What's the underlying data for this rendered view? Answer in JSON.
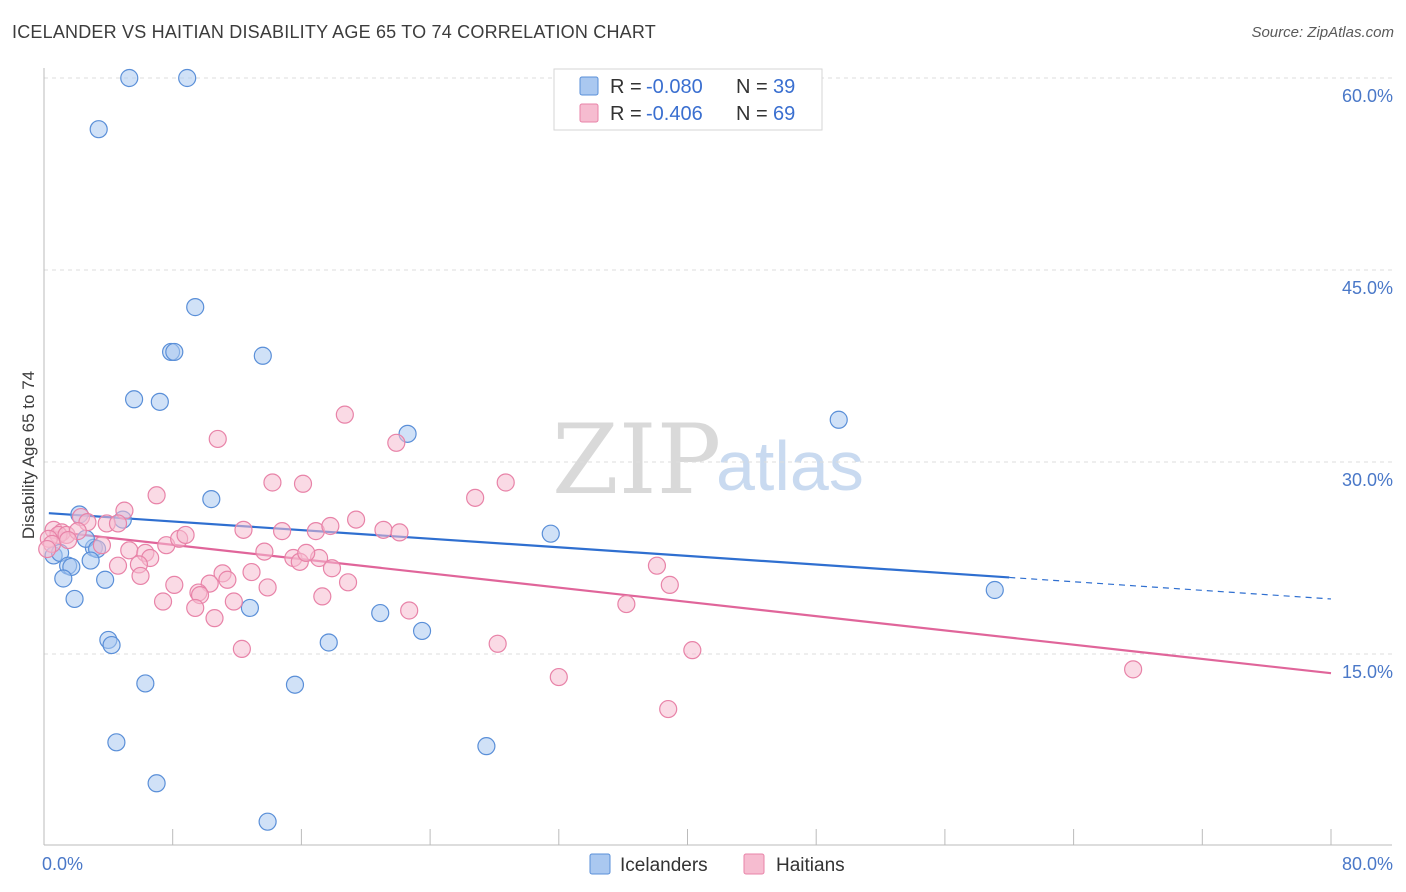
{
  "title": "ICELANDER VS HAITIAN DISABILITY AGE 65 TO 74 CORRELATION CHART",
  "source": "Source: ZipAtlas.com",
  "watermark": {
    "zip": "ZIP",
    "atlas": "atlas"
  },
  "legend": {
    "rows": [
      {
        "r_label": "R =",
        "r_value": "-0.080",
        "n_label": "N =",
        "n_value": "39"
      },
      {
        "r_label": "R =",
        "r_value": "-0.406",
        "n_label": "N =",
        "n_value": "69"
      }
    ]
  },
  "colors": {
    "blue_fill": "#aac8f0",
    "blue_stroke": "#5a8fd8",
    "blue_line": "#2f6fd0",
    "pink_fill": "#f6bcd0",
    "pink_stroke": "#e883a8",
    "pink_line": "#e0659a",
    "grid": "#dddddd"
  },
  "chart_data": {
    "type": "scatter",
    "xlabel": "",
    "ylabel": "Disability Age 65 to 74",
    "xlim": [
      0,
      80
    ],
    "ylim": [
      0,
      63
    ],
    "y_ticks": [
      {
        "value": 15,
        "label": "15.0%"
      },
      {
        "value": 30,
        "label": "30.0%"
      },
      {
        "value": 45,
        "label": "45.0%"
      },
      {
        "value": 60,
        "label": "60.0%"
      }
    ],
    "x_tick_labels": [
      {
        "value": 0,
        "label": "0.0%"
      },
      {
        "value": 80,
        "label": "80.0%"
      }
    ],
    "x_minor_ticks": [
      0,
      8,
      16,
      24,
      32,
      40,
      48,
      56,
      64,
      72,
      80
    ],
    "series": [
      {
        "name": "Icelanders",
        "color": "blue",
        "points": [
          [
            5.3,
            60.0
          ],
          [
            8.9,
            60.0
          ],
          [
            3.4,
            56.0
          ],
          [
            9.4,
            42.1
          ],
          [
            7.9,
            38.6
          ],
          [
            8.1,
            38.6
          ],
          [
            13.6,
            38.3
          ],
          [
            5.6,
            34.9
          ],
          [
            7.2,
            34.7
          ],
          [
            22.6,
            32.2
          ],
          [
            49.4,
            33.3
          ],
          [
            10.4,
            27.1
          ],
          [
            2.2,
            25.9
          ],
          [
            4.9,
            25.5
          ],
          [
            31.5,
            24.4
          ],
          [
            0.6,
            22.7
          ],
          [
            1.0,
            22.9
          ],
          [
            3.1,
            23.3
          ],
          [
            2.6,
            24.0
          ],
          [
            3.3,
            23.2
          ],
          [
            1.5,
            21.9
          ],
          [
            2.9,
            22.3
          ],
          [
            1.7,
            21.8
          ],
          [
            1.2,
            20.9
          ],
          [
            3.8,
            20.8
          ],
          [
            1.9,
            19.3
          ],
          [
            12.8,
            18.6
          ],
          [
            20.9,
            18.2
          ],
          [
            59.1,
            20.0
          ],
          [
            23.5,
            16.8
          ],
          [
            4.0,
            16.1
          ],
          [
            4.2,
            15.7
          ],
          [
            17.7,
            15.9
          ],
          [
            6.3,
            12.7
          ],
          [
            15.6,
            12.6
          ],
          [
            4.5,
            8.1
          ],
          [
            27.5,
            7.8
          ],
          [
            7.0,
            4.9
          ],
          [
            13.9,
            1.9
          ]
        ]
      },
      {
        "name": "Haitians",
        "color": "pink",
        "points": [
          [
            18.7,
            33.7
          ],
          [
            10.8,
            31.8
          ],
          [
            21.9,
            31.5
          ],
          [
            14.2,
            28.4
          ],
          [
            16.1,
            28.3
          ],
          [
            28.7,
            28.4
          ],
          [
            7.0,
            27.4
          ],
          [
            26.8,
            27.2
          ],
          [
            5.0,
            26.2
          ],
          [
            2.3,
            25.7
          ],
          [
            19.4,
            25.5
          ],
          [
            2.7,
            25.3
          ],
          [
            3.9,
            25.2
          ],
          [
            4.6,
            25.2
          ],
          [
            12.4,
            24.7
          ],
          [
            14.8,
            24.6
          ],
          [
            16.9,
            24.6
          ],
          [
            17.8,
            25.0
          ],
          [
            21.1,
            24.7
          ],
          [
            22.1,
            24.5
          ],
          [
            0.6,
            24.7
          ],
          [
            1.1,
            24.5
          ],
          [
            0.9,
            24.3
          ],
          [
            1.4,
            24.3
          ],
          [
            2.1,
            24.6
          ],
          [
            0.3,
            24.0
          ],
          [
            0.5,
            23.6
          ],
          [
            1.5,
            23.9
          ],
          [
            3.6,
            23.5
          ],
          [
            5.3,
            23.1
          ],
          [
            6.3,
            22.9
          ],
          [
            7.6,
            23.5
          ],
          [
            8.4,
            24.0
          ],
          [
            8.8,
            24.3
          ],
          [
            6.6,
            22.5
          ],
          [
            13.7,
            23.0
          ],
          [
            15.5,
            22.5
          ],
          [
            15.9,
            22.2
          ],
          [
            17.1,
            22.5
          ],
          [
            16.3,
            22.9
          ],
          [
            4.6,
            21.9
          ],
          [
            5.9,
            22.0
          ],
          [
            12.9,
            21.4
          ],
          [
            11.1,
            21.3
          ],
          [
            11.4,
            20.8
          ],
          [
            17.9,
            21.7
          ],
          [
            6.0,
            21.1
          ],
          [
            8.1,
            20.4
          ],
          [
            10.3,
            20.5
          ],
          [
            18.9,
            20.6
          ],
          [
            38.1,
            21.9
          ],
          [
            38.9,
            20.4
          ],
          [
            9.6,
            19.8
          ],
          [
            7.4,
            19.1
          ],
          [
            9.7,
            19.6
          ],
          [
            11.8,
            19.1
          ],
          [
            13.9,
            20.2
          ],
          [
            17.3,
            19.5
          ],
          [
            36.2,
            18.9
          ],
          [
            9.4,
            18.6
          ],
          [
            22.7,
            18.4
          ],
          [
            10.6,
            17.8
          ],
          [
            12.3,
            15.4
          ],
          [
            28.2,
            15.8
          ],
          [
            40.3,
            15.3
          ],
          [
            67.7,
            13.8
          ],
          [
            32.0,
            13.2
          ],
          [
            38.8,
            10.7
          ],
          [
            0.2,
            23.2
          ]
        ]
      }
    ],
    "trend_lines": [
      {
        "series": "Icelanders",
        "x_start": 0.3,
        "y_start": 26.0,
        "x_end": 80,
        "y_end": 19.3,
        "solid_until_x": 60.0
      },
      {
        "series": "Haitians",
        "x_start": 0.3,
        "y_start": 24.6,
        "x_end": 80,
        "y_end": 13.5,
        "solid_until_x": 80
      }
    ]
  },
  "bottom_legend": [
    {
      "label": "Icelanders",
      "color": "blue"
    },
    {
      "label": "Haitians",
      "color": "pink"
    }
  ]
}
